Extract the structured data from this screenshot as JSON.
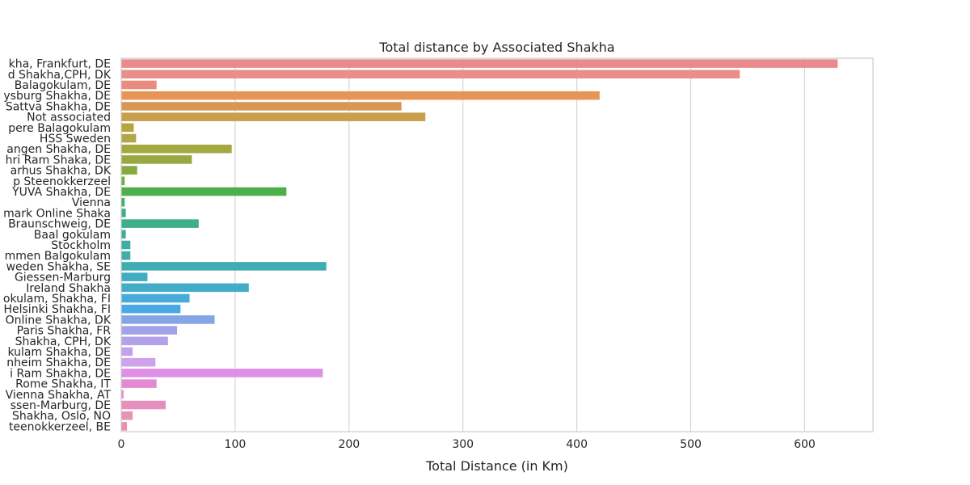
{
  "chart_data": {
    "type": "bar",
    "orientation": "horizontal",
    "title": "Total distance by Associated Shakha",
    "xlabel": "Total Distance (in Km)",
    "ylabel": "",
    "xlim": [
      0,
      660
    ],
    "xticks": [
      0,
      100,
      200,
      300,
      400,
      500,
      600
    ],
    "grid": true,
    "categories": [
      "kha, Frankfurt, DE",
      "d Shakha,CPH, DK",
      "Balagokulam, DE",
      "ysburg Shakha, DE",
      "Sattva Shakha, DE",
      "Not associated",
      "pere Balagokulam",
      "HSS Sweden",
      "angen Shakha, DE",
      "hri Ram Shaka, DE",
      "arhus Shakha, DK",
      "p Steenokkerzeel",
      "YUVA Shakha, DE",
      "Vienna",
      "mark Online Shaka",
      "Braunschweig, DE",
      "Baal gokulam",
      "Stockholm",
      "mmen Balgokulam",
      "weden Shakha, SE",
      "Giessen-Marburg",
      "Ireland Shakha",
      "okulam, Shakha, FI",
      "Helsinki Shakha, FI",
      "Online Shakha, DK",
      "Paris Shakha, FR",
      "Shakha, CPH, DK",
      "kulam Shakha, DE",
      "nheim Shakha, DE",
      "i Ram Shakha, DE",
      "Rome Shakha, IT",
      "Vienna Shakha, AT",
      "ssen-Marburg, DE",
      "Shakha, Oslo, NO",
      "teenokkerzeel, BE"
    ],
    "values": [
      629,
      543,
      31,
      420,
      246,
      267,
      11,
      13,
      97,
      62,
      14,
      3,
      145,
      3,
      4,
      68,
      4,
      8,
      8,
      180,
      23,
      112,
      60,
      52,
      82,
      49,
      41,
      10,
      30,
      177,
      31,
      2,
      39,
      10,
      5
    ],
    "colors": [
      "#ea8a8e",
      "#e98f87",
      "#e98b7d",
      "#e69556",
      "#d89854",
      "#c99e4c",
      "#b9a442",
      "#b1a746",
      "#a4a841",
      "#98a843",
      "#86aa41",
      "#6fb043",
      "#4caf4a",
      "#3db36a",
      "#3eaf82",
      "#3eae8b",
      "#3eae96",
      "#3eaea2",
      "#3fadaa",
      "#40adb5",
      "#41adc0",
      "#42acc9",
      "#45acd8",
      "#48a9e6",
      "#84a5e6",
      "#a2a2ea",
      "#b3a2ea",
      "#c1a2ec",
      "#cfa2ec",
      "#de8fe6",
      "#e48ad2",
      "#e48ec6",
      "#e48fbc",
      "#e892b6",
      "#ea8fad"
    ]
  }
}
